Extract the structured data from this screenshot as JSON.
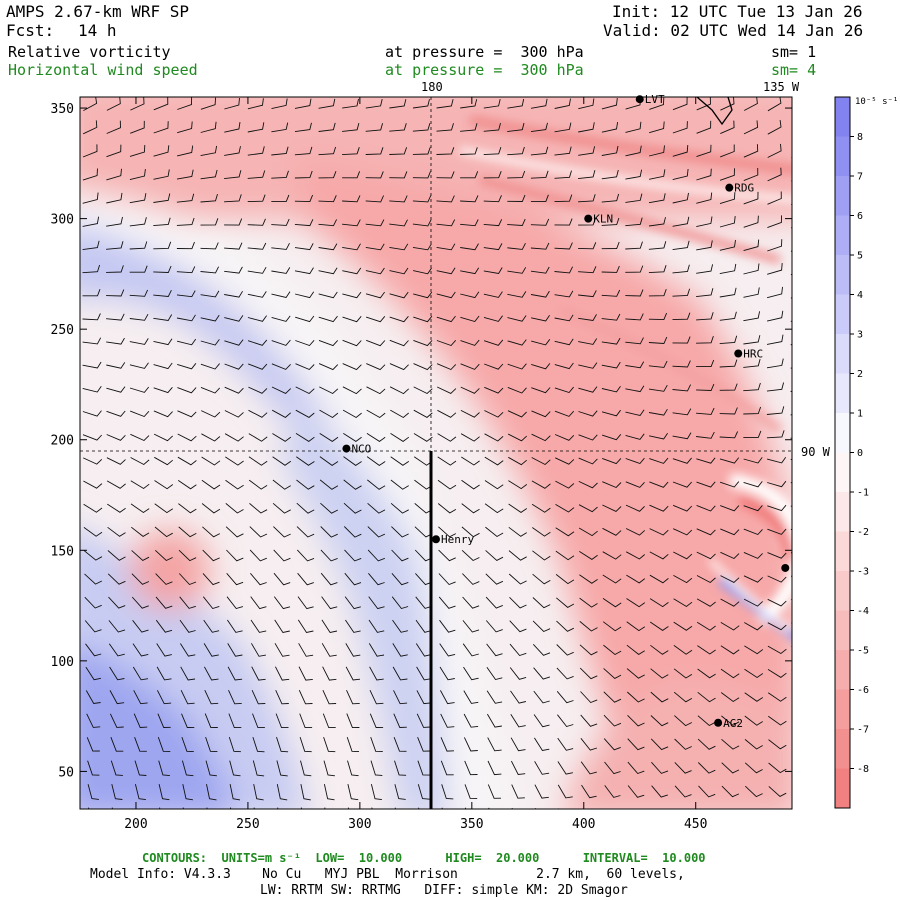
{
  "header": {
    "model": "AMPS 2.67-km WRF SP",
    "fcst_label": "Fcst:",
    "fcst_value": "14 h",
    "init": "Init: 12 UTC Tue 13 Jan 26",
    "valid": "Valid: 02 UTC Wed 14 Jan 26"
  },
  "fields": [
    {
      "name": "Relative vorticity",
      "pressure": "at pressure =  300 hPa",
      "sm": "sm= 1",
      "color": "#000000"
    },
    {
      "name": "Horizontal wind speed",
      "pressure": "at pressure =  300 hPa",
      "sm": "sm= 4",
      "color": "#1f8a1f"
    }
  ],
  "map": {
    "x_ticks": [
      200,
      250,
      300,
      350,
      400,
      450
    ],
    "y_ticks": [
      50,
      100,
      150,
      200,
      250,
      300,
      350
    ],
    "x_range": [
      175,
      493
    ],
    "y_range": [
      33,
      355
    ],
    "meridian_labels": {
      "top_180": "180",
      "top_135w": "135 W",
      "right_90w": "90 W"
    },
    "stations": [
      {
        "name": "LVT",
        "x": 425,
        "y": 354
      },
      {
        "name": "RDG",
        "x": 465,
        "y": 314
      },
      {
        "name": "KLN",
        "x": 402,
        "y": 300
      },
      {
        "name": "HRC",
        "x": 469,
        "y": 239
      },
      {
        "name": "NCO",
        "x": 294,
        "y": 196
      },
      {
        "name": "Henry",
        "x": 334,
        "y": 155
      },
      {
        "name": "",
        "x": 490,
        "y": 142
      },
      {
        "name": "AG2",
        "x": 460,
        "y": 72
      }
    ],
    "colors": {
      "positive": "#7b7bf0",
      "negative": "#f07b7b",
      "coast": "#000000"
    }
  },
  "colorbar": {
    "unit_label": "10⁻⁵ s⁻¹",
    "labels": [
      "8",
      "7",
      "6",
      "5",
      "4",
      "3",
      "2",
      "1",
      "0",
      "-1",
      "-2",
      "-3",
      "-4",
      "-5",
      "-6",
      "-7",
      "-8"
    ]
  },
  "footer": {
    "contours": "CONTOURS:  UNITS=m s⁻¹  LOW=  10.000      HIGH=  20.000      INTERVAL=  10.000",
    "model_info_1": "Model Info: V4.3.3    No Cu   MYJ PBL  Morrison          2.7 km,  60 levels,",
    "model_info_2": "LW: RRTM SW: RRTMG   DIFF: simple KM: 2D Smagor"
  }
}
